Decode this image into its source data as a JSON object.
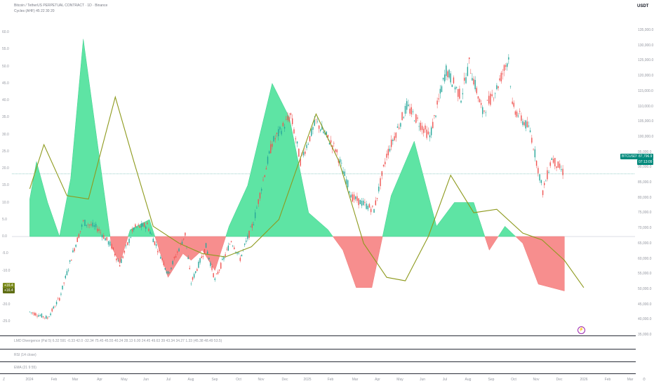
{
  "header": {
    "symbol_line": "Bitcoin / TetherUS PERPETUAL CONTRACT · 1D · Binance",
    "indicator_line": "Cycles (AHF) 45 22 30 20",
    "currency": "USDT"
  },
  "panes": {
    "divergence_label": "LMD Divergence (Pal 5) 6.32 591 -0.33 42.0 -32.34 75.45 45.55 40.24 28.13 6.00 24.45 49.63 39 43.34 34.27 1.33 (45.38 48.49 53.5)",
    "rsi_label": "RSI (14 close)",
    "ema_label": "EMA (21 9 55)"
  },
  "osc_axis": [
    "60.0",
    "55.0",
    "50.0",
    "45.0",
    "40.0",
    "35.0",
    "30.0",
    "25.0",
    "20.0",
    "15.0",
    "10.0",
    "5.0",
    "0.0",
    "-5.0",
    "-10.0",
    "-15.0",
    "-20.0",
    "-25.0"
  ],
  "price_axis": [
    "135,000.0",
    "130,000.0",
    "125,000.0",
    "120,000.0",
    "115,000.0",
    "110,000.0",
    "105,000.0",
    "100,000.0",
    "95,000.0",
    "90,000.0",
    "85,000.0",
    "80,000.0",
    "75,000.0",
    "70,000.0",
    "65,000.0",
    "60,000.0",
    "55,000.0",
    "50,000.0",
    "45,000.0",
    "40,000.0",
    "35,000.0"
  ],
  "time_axis": [
    "2024",
    "Feb",
    "Mar",
    "Apr",
    "May",
    "Jun",
    "Jul",
    "Aug",
    "Sep",
    "Oct",
    "Nov",
    "Dec",
    "2025",
    "Feb",
    "Mar",
    "Apr",
    "May",
    "Jun",
    "Jul",
    "Aug",
    "Sep",
    "Oct",
    "Nov",
    "Dec",
    "2026",
    "Feb",
    "Mar"
  ],
  "badges": {
    "price_symbol": "BTCUSDT.P",
    "price_value": "87,796.9",
    "price_time": "07:13:09",
    "osc_a": "+16.4",
    "osc_b": "+16.4"
  },
  "zoom_label": "Z",
  "time_button": "⏱",
  "alert_glyph": "⚡",
  "colors": {
    "positive_fill": "#5ee4a4",
    "negative_fill": "#f78e8e",
    "cycle_line": "#8e9a1e",
    "candle_up": "#26a69a",
    "candle_down": "#ef5350",
    "price_badge": "#00897b",
    "osc_badge": "#7b8b1c"
  },
  "chart_data": {
    "type": "area",
    "oscillator_range": [
      -25,
      60
    ],
    "price_range": [
      35000,
      135000
    ],
    "histogram": [
      {
        "x": "2024-01-01",
        "y": 11
      },
      {
        "x": "2024-01-10",
        "y": 22
      },
      {
        "x": "2024-01-25",
        "y": 10
      },
      {
        "x": "2024-02-10",
        "y": 0
      },
      {
        "x": "2024-02-25",
        "y": 17
      },
      {
        "x": "2024-03-13",
        "y": 58
      },
      {
        "x": "2024-04-10",
        "y": 13
      },
      {
        "x": "2024-04-20",
        "y": -3
      },
      {
        "x": "2024-05-01",
        "y": -8
      },
      {
        "x": "2024-05-15",
        "y": 2
      },
      {
        "x": "2024-06-10",
        "y": 5
      },
      {
        "x": "2024-07-05",
        "y": -12
      },
      {
        "x": "2024-07-25",
        "y": -5
      },
      {
        "x": "2024-08-05",
        "y": -7
      },
      {
        "x": "2024-08-20",
        "y": -4
      },
      {
        "x": "2024-09-06",
        "y": -10
      },
      {
        "x": "2024-09-25",
        "y": 3
      },
      {
        "x": "2024-10-20",
        "y": 15
      },
      {
        "x": "2024-11-22",
        "y": 45
      },
      {
        "x": "2024-12-15",
        "y": 35
      },
      {
        "x": "2025-01-10",
        "y": 7
      },
      {
        "x": "2025-02-05",
        "y": 2
      },
      {
        "x": "2025-02-25",
        "y": -4
      },
      {
        "x": "2025-03-15",
        "y": -15
      },
      {
        "x": "2025-04-05",
        "y": -15
      },
      {
        "x": "2025-05-01",
        "y": 12
      },
      {
        "x": "2025-06-01",
        "y": 28
      },
      {
        "x": "2025-07-01",
        "y": 3
      },
      {
        "x": "2025-07-25",
        "y": 10
      },
      {
        "x": "2025-08-20",
        "y": 10
      },
      {
        "x": "2025-09-10",
        "y": -4
      },
      {
        "x": "2025-10-01",
        "y": 3
      },
      {
        "x": "2025-10-25",
        "y": -2
      },
      {
        "x": "2025-11-15",
        "y": -14
      },
      {
        "x": "2025-12-20",
        "y": -16
      }
    ],
    "cycle_line": [
      {
        "x": "2024-01-01",
        "y": 14
      },
      {
        "x": "2024-01-20",
        "y": 27
      },
      {
        "x": "2024-02-20",
        "y": 12
      },
      {
        "x": "2024-03-20",
        "y": 11
      },
      {
        "x": "2024-04-25",
        "y": 41
      },
      {
        "x": "2024-05-20",
        "y": 22
      },
      {
        "x": "2024-06-15",
        "y": 3
      },
      {
        "x": "2024-07-20",
        "y": -2
      },
      {
        "x": "2024-08-20",
        "y": -5
      },
      {
        "x": "2024-09-20",
        "y": -6
      },
      {
        "x": "2024-10-25",
        "y": -3
      },
      {
        "x": "2024-12-01",
        "y": 5
      },
      {
        "x": "2024-12-25",
        "y": 20
      },
      {
        "x": "2025-01-20",
        "y": 36
      },
      {
        "x": "2025-02-20",
        "y": 22
      },
      {
        "x": "2025-03-25",
        "y": -2
      },
      {
        "x": "2025-04-25",
        "y": -12
      },
      {
        "x": "2025-05-20",
        "y": -13
      },
      {
        "x": "2025-06-20",
        "y": 0
      },
      {
        "x": "2025-07-20",
        "y": 18
      },
      {
        "x": "2025-08-20",
        "y": 7
      },
      {
        "x": "2025-09-20",
        "y": 8
      },
      {
        "x": "2025-10-25",
        "y": 1
      },
      {
        "x": "2025-11-20",
        "y": -1
      },
      {
        "x": "2025-12-20",
        "y": -7
      },
      {
        "x": "2026-01-15",
        "y": -15
      }
    ],
    "price": [
      {
        "x": "2024-01-01",
        "y": 42500
      },
      {
        "x": "2024-01-25",
        "y": 40500
      },
      {
        "x": "2024-02-10",
        "y": 47000
      },
      {
        "x": "2024-02-28",
        "y": 62000
      },
      {
        "x": "2024-03-13",
        "y": 72000
      },
      {
        "x": "2024-04-01",
        "y": 70000
      },
      {
        "x": "2024-04-20",
        "y": 64000
      },
      {
        "x": "2024-05-01",
        "y": 58000
      },
      {
        "x": "2024-05-20",
        "y": 70000
      },
      {
        "x": "2024-06-07",
        "y": 71000
      },
      {
        "x": "2024-06-25",
        "y": 61000
      },
      {
        "x": "2024-07-05",
        "y": 55000
      },
      {
        "x": "2024-07-28",
        "y": 68000
      },
      {
        "x": "2024-08-05",
        "y": 52000
      },
      {
        "x": "2024-08-25",
        "y": 64000
      },
      {
        "x": "2024-09-06",
        "y": 53000
      },
      {
        "x": "2024-09-28",
        "y": 66000
      },
      {
        "x": "2024-10-10",
        "y": 60000
      },
      {
        "x": "2024-10-28",
        "y": 72000
      },
      {
        "x": "2024-11-12",
        "y": 88000
      },
      {
        "x": "2024-11-22",
        "y": 98000
      },
      {
        "x": "2024-12-17",
        "y": 107000
      },
      {
        "x": "2024-12-30",
        "y": 92000
      },
      {
        "x": "2025-01-20",
        "y": 105000
      },
      {
        "x": "2025-02-15",
        "y": 96000
      },
      {
        "x": "2025-03-10",
        "y": 80000
      },
      {
        "x": "2025-04-08",
        "y": 76000
      },
      {
        "x": "2025-04-25",
        "y": 94000
      },
      {
        "x": "2025-05-22",
        "y": 110000
      },
      {
        "x": "2025-06-22",
        "y": 100000
      },
      {
        "x": "2025-07-14",
        "y": 122000
      },
      {
        "x": "2025-08-03",
        "y": 113000
      },
      {
        "x": "2025-08-14",
        "y": 124000
      },
      {
        "x": "2025-09-01",
        "y": 108000
      },
      {
        "x": "2025-09-20",
        "y": 116000
      },
      {
        "x": "2025-10-06",
        "y": 126000
      },
      {
        "x": "2025-10-11",
        "y": 110000
      },
      {
        "x": "2025-11-04",
        "y": 102000
      },
      {
        "x": "2025-11-21",
        "y": 82000
      },
      {
        "x": "2025-12-03",
        "y": 93000
      },
      {
        "x": "2025-12-20",
        "y": 87800
      }
    ]
  }
}
